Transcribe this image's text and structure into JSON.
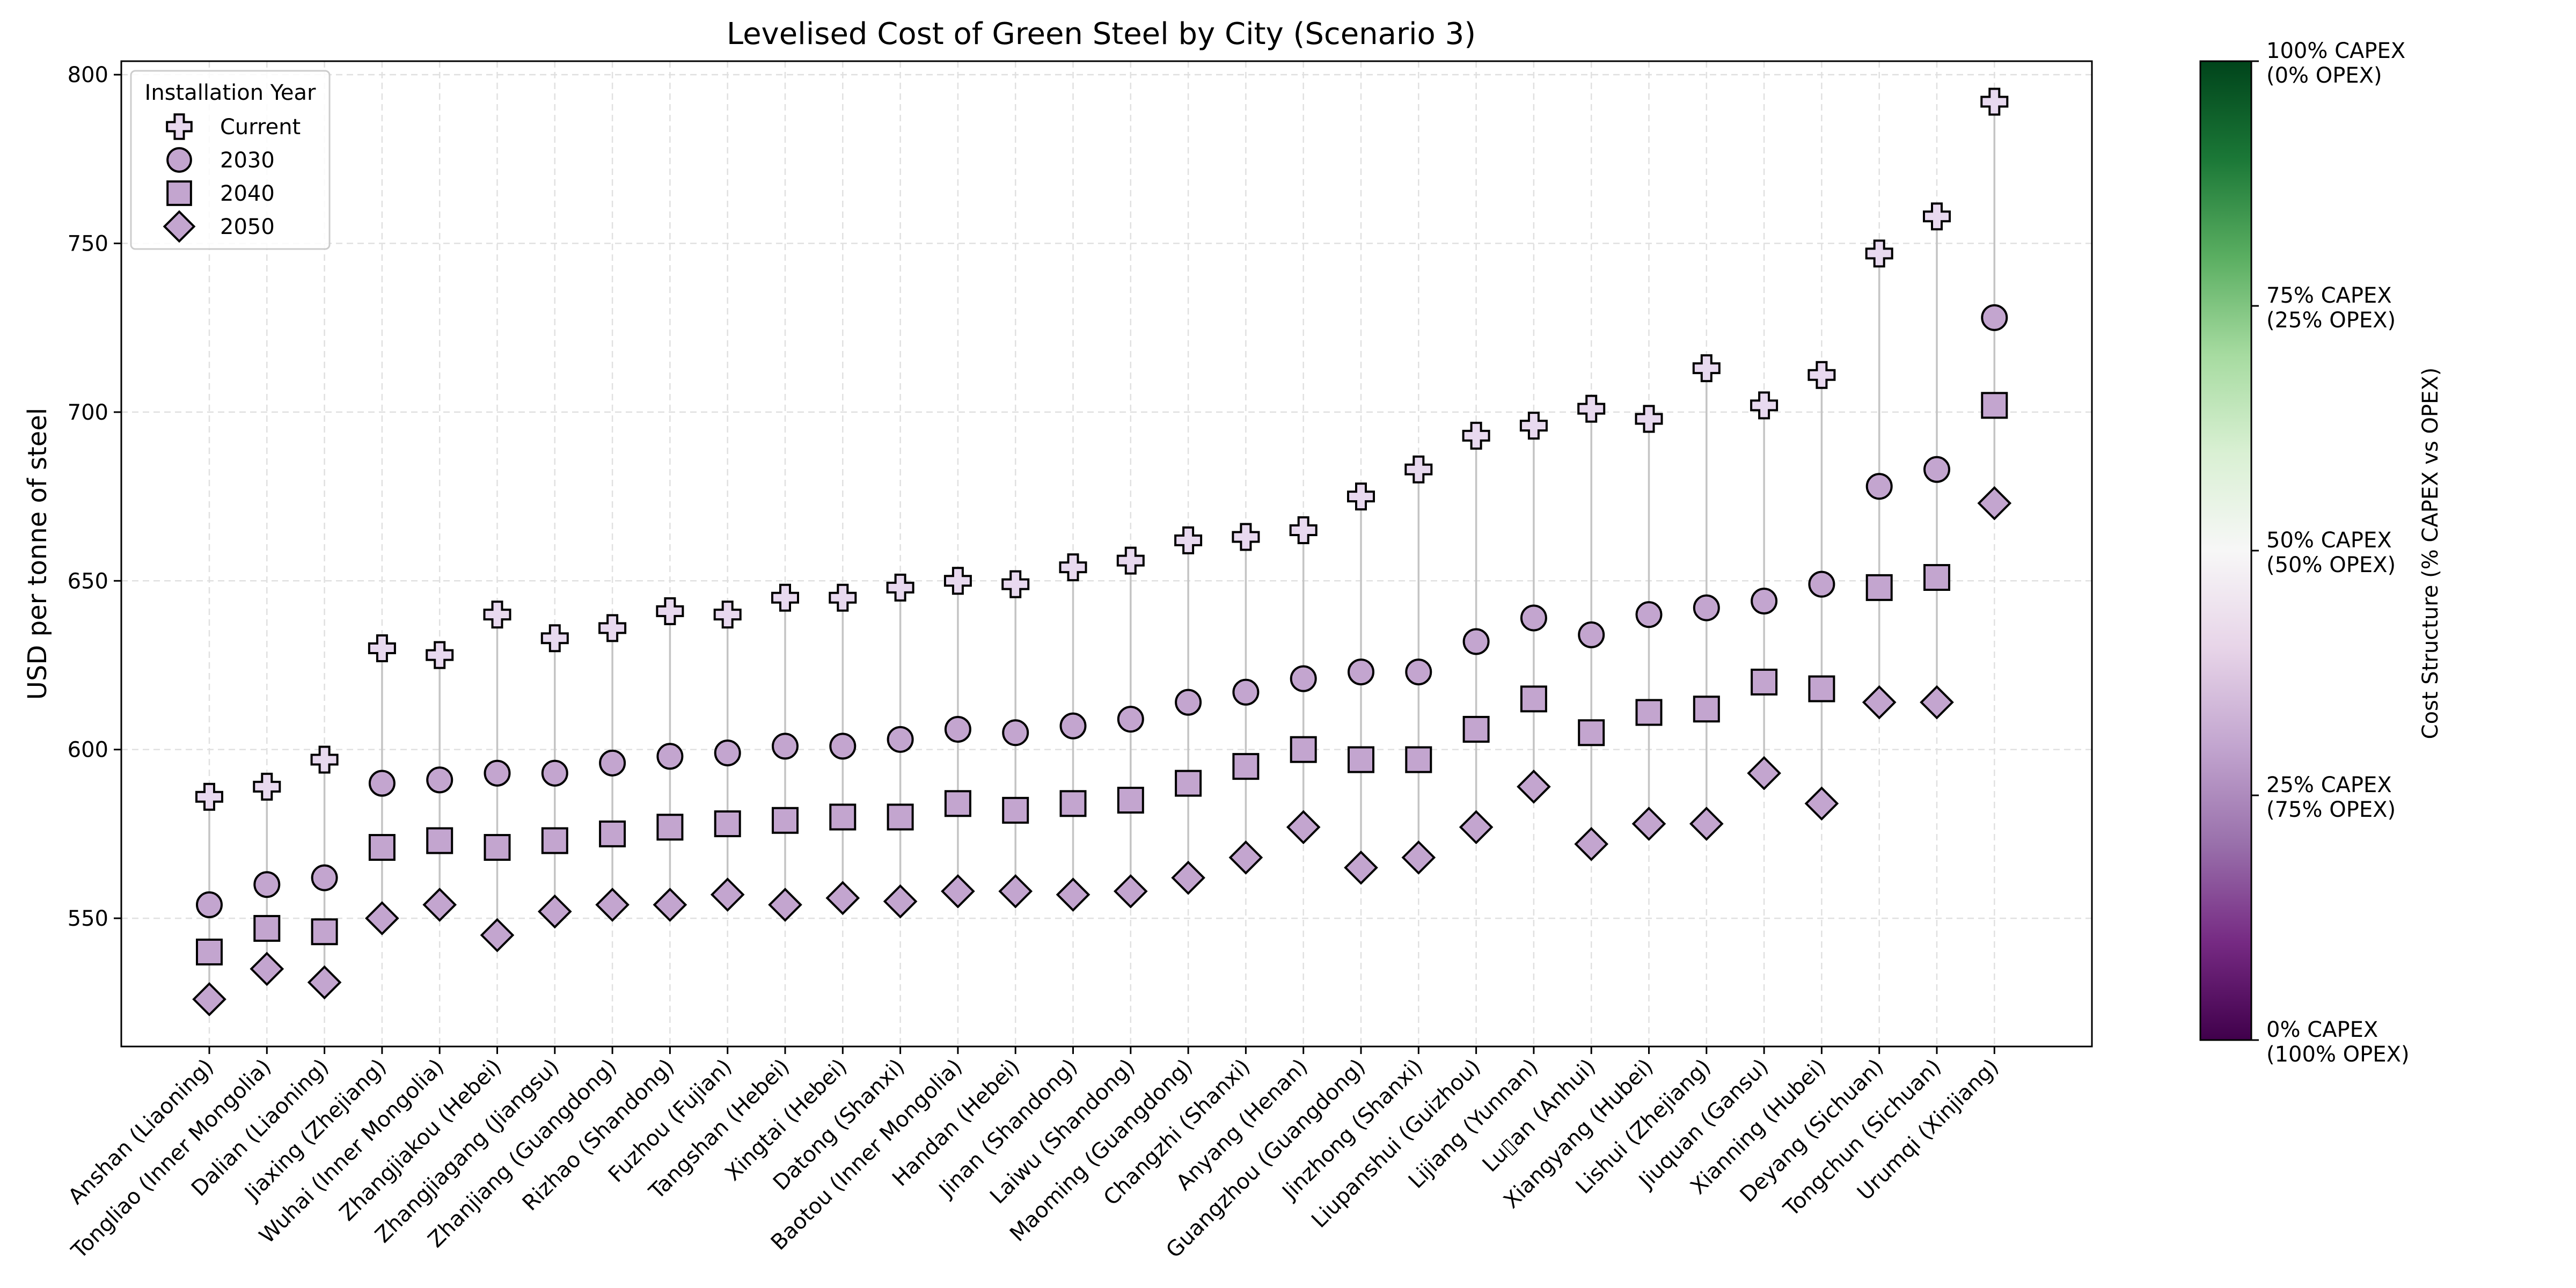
{
  "chart_data": {
    "type": "scatter",
    "title": "Levelised Cost of Green Steel by City (Scenario 3)",
    "xlabel": "",
    "ylabel": "USD per tonne of steel",
    "ylim": [
      512,
      804
    ],
    "yticks": [
      550,
      600,
      650,
      700,
      750,
      800
    ],
    "grid": true,
    "legend": {
      "title": "Installation Year",
      "placement": "top-left"
    },
    "categories": [
      "Anshan (Liaoning)",
      "Tongliao (Inner Mongolia)",
      "Dalian (Liaoning)",
      "Jiaxing (Zhejiang)",
      "Wuhai (Inner Mongolia)",
      "Zhangjiakou (Hebei)",
      "Zhangjiagang (Jiangsu)",
      "Zhanjiang (Guangdong)",
      "Rizhao (Shandong)",
      "Fuzhou (Fujian)",
      "Tangshan (Hebei)",
      "Xingtai (Hebei)",
      "Datong (Shanxi)",
      "Baotou (Inner Mongolia)",
      "Handan (Hebei)",
      "Jinan (Shandong)",
      "Laiwu (Shandong)",
      "Maoming (Guangdong)",
      "Changzhi (Shanxi)",
      "Anyang (Henan)",
      "Guangzhou (Guangdong)",
      "Jinzhong (Shanxi)",
      "Liupanshui (Guizhou)",
      "Lijiang (Yunnan)",
      "Lu▯an (Anhui)",
      "Xiangyang (Hubei)",
      "Lishui (Zhejiang)",
      "Jiuquan (Gansu)",
      "Xianning (Hubei)",
      "Deyang (Sichuan)",
      "Tongchun (Sichuan)",
      "Urumqi (Xinjiang)"
    ],
    "series": [
      {
        "name": "Current",
        "marker": "plus",
        "values": [
          586,
          589,
          597,
          630,
          628,
          640,
          633,
          636,
          641,
          640,
          645,
          645,
          648,
          650,
          649,
          654,
          656,
          662,
          663,
          665,
          675,
          683,
          693,
          696,
          701,
          698,
          713,
          702,
          711,
          747,
          758,
          792
        ]
      },
      {
        "name": "2030",
        "marker": "circle",
        "values": [
          554,
          560,
          562,
          590,
          591,
          593,
          593,
          596,
          598,
          599,
          601,
          601,
          603,
          606,
          605,
          607,
          609,
          614,
          617,
          621,
          623,
          623,
          632,
          639,
          634,
          640,
          642,
          644,
          649,
          678,
          683,
          728
        ]
      },
      {
        "name": "2040",
        "marker": "square",
        "values": [
          540,
          547,
          546,
          571,
          573,
          571,
          573,
          575,
          577,
          578,
          579,
          580,
          580,
          584,
          582,
          584,
          585,
          590,
          595,
          600,
          597,
          597,
          606,
          615,
          605,
          611,
          612,
          620,
          618,
          648,
          651,
          702
        ]
      },
      {
        "name": "2050",
        "marker": "diamond",
        "values": [
          526,
          535,
          531,
          550,
          554,
          545,
          552,
          554,
          554,
          557,
          554,
          556,
          555,
          558,
          558,
          557,
          558,
          562,
          568,
          577,
          565,
          568,
          577,
          589,
          572,
          578,
          578,
          593,
          584,
          614,
          614,
          673
        ]
      }
    ],
    "marker_color": "#c3a5cf",
    "colorbar": {
      "label": "Cost Structure (% CAPEX vs OPEX)",
      "ticks": [
        {
          "value": 0,
          "line1": "0% CAPEX",
          "line2": "(100% OPEX)"
        },
        {
          "value": 25,
          "line1": "25% CAPEX",
          "line2": "(75% OPEX)"
        },
        {
          "value": 50,
          "line1": "50% CAPEX",
          "line2": "(50% OPEX)"
        },
        {
          "value": 75,
          "line1": "75% CAPEX",
          "line2": "(25% OPEX)"
        },
        {
          "value": 100,
          "line1": "100% CAPEX",
          "line2": "(0% OPEX)"
        }
      ],
      "colors": [
        "#40004b",
        "#762a83",
        "#9970ab",
        "#c2a5cf",
        "#e7d4e8",
        "#f7f7f7",
        "#d9f0d3",
        "#a6dba0",
        "#5aae61",
        "#1b7837",
        "#00441b"
      ]
    }
  }
}
